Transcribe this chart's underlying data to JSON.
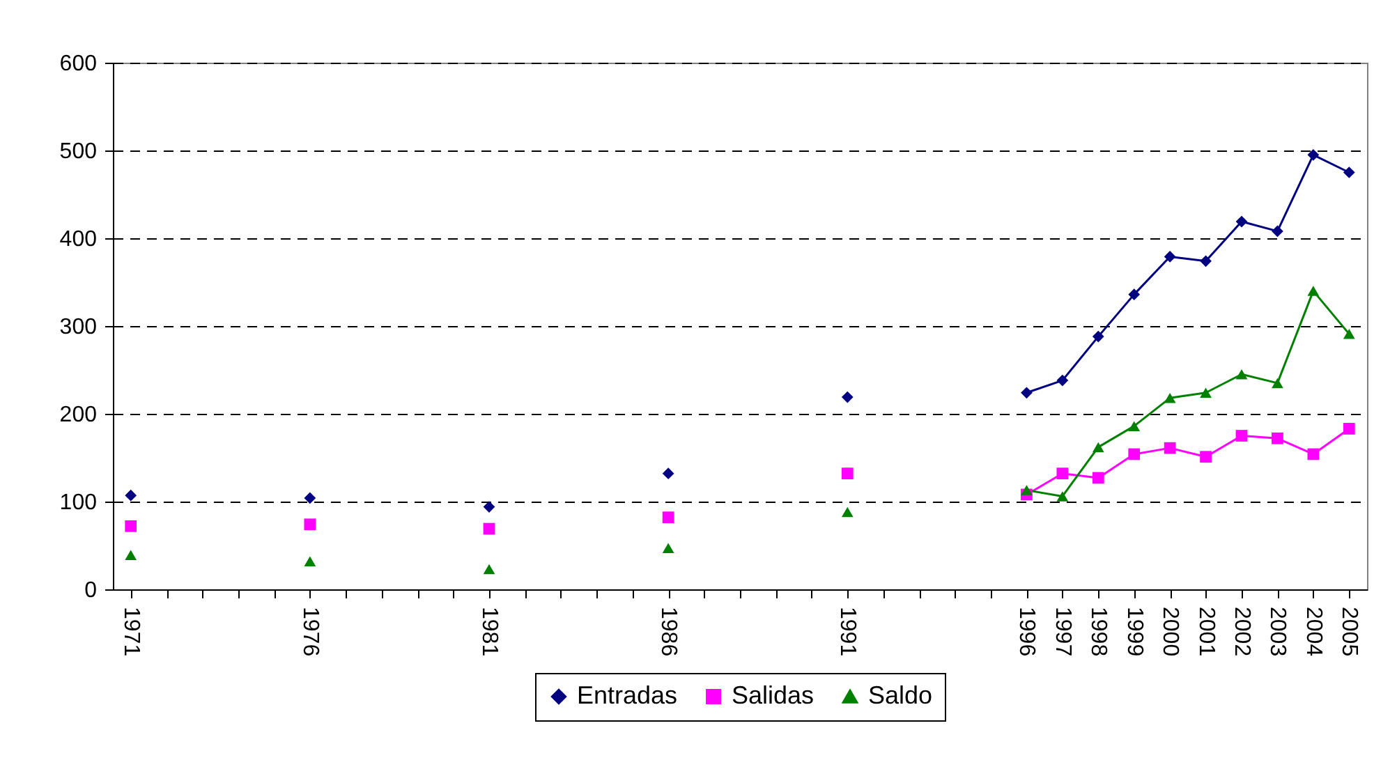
{
  "chart_data": {
    "type": "line",
    "categories": [
      "1971",
      null,
      null,
      null,
      null,
      "1976",
      null,
      null,
      null,
      null,
      "1981",
      null,
      null,
      null,
      null,
      "1986",
      null,
      null,
      null,
      null,
      "1991",
      null,
      null,
      null,
      null,
      "1996",
      "1997",
      "1998",
      "1999",
      "2000",
      "2001",
      "2002",
      "2003",
      "2004",
      "2005"
    ],
    "series": [
      {
        "name": "Entradas",
        "color": "#000080",
        "marker": "diamond",
        "values": [
          107,
          null,
          null,
          null,
          null,
          104,
          null,
          null,
          null,
          null,
          94,
          null,
          null,
          null,
          null,
          132,
          null,
          null,
          null,
          null,
          219,
          null,
          null,
          null,
          null,
          224,
          238,
          288,
          336,
          379,
          374,
          419,
          408,
          495,
          475
        ]
      },
      {
        "name": "Salidas",
        "color": "#ff00ff",
        "marker": "square",
        "values": [
          72,
          null,
          null,
          null,
          null,
          74,
          null,
          null,
          null,
          null,
          69,
          null,
          null,
          null,
          null,
          82,
          null,
          null,
          null,
          null,
          132,
          null,
          null,
          null,
          null,
          108,
          132,
          127,
          154,
          161,
          151,
          175,
          172,
          154,
          183
        ]
      },
      {
        "name": "Saldo",
        "color": "#008000",
        "marker": "triangle",
        "values": [
          39,
          null,
          null,
          null,
          null,
          32,
          null,
          null,
          null,
          null,
          23,
          null,
          null,
          null,
          null,
          47,
          null,
          null,
          null,
          null,
          88,
          null,
          null,
          null,
          null,
          113,
          106,
          162,
          186,
          218,
          224,
          245,
          235,
          340,
          291
        ]
      }
    ],
    "ylim": [
      0,
      600
    ],
    "yticks": [
      0,
      100,
      200,
      300,
      400,
      500,
      600
    ],
    "grid": "y",
    "legend": "bottom",
    "line_style": "solid"
  }
}
